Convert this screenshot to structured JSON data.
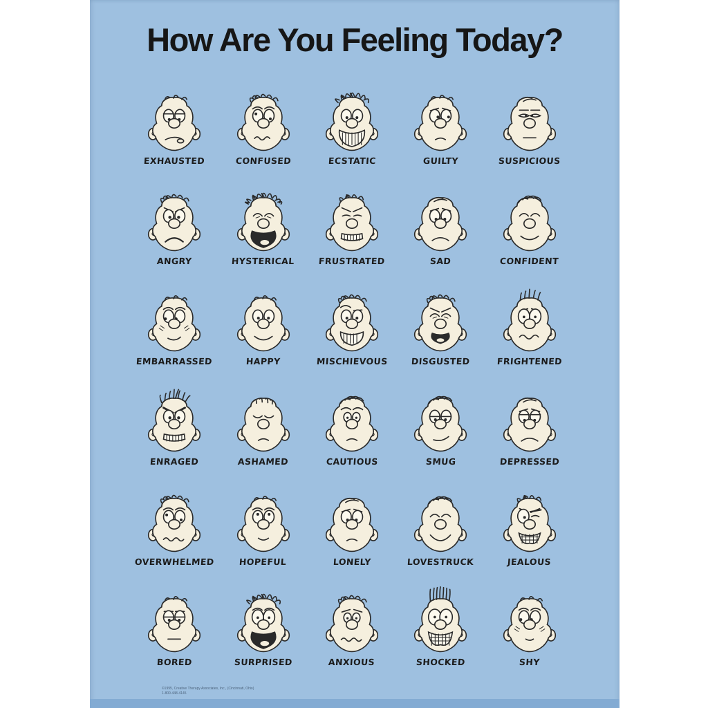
{
  "poster": {
    "title": "How Are You Feeling Today?",
    "fine_print_line1": "©1995, Creative Therapy Associates, Inc., (Cincinnati, Ohio)",
    "fine_print_line2": "1-800-448-4145"
  },
  "colors": {
    "page_bg": "#ffffff",
    "poster_bg": "#9ec0e0",
    "poster_edge": "#83abd3",
    "face_fill": "#f5efde",
    "eye_white": "#fcf9ee",
    "ink": "#2a2a2a",
    "title_color": "#161616"
  },
  "grid": {
    "rows": 6,
    "cols": 5
  },
  "faces": [
    {
      "label": "EXHAUSTED",
      "hair": "wisps",
      "brows": "none",
      "eyes": "droopy",
      "mouth": "tongue-frown",
      "extra": "none"
    },
    {
      "label": "CONFUSED",
      "hair": "messy",
      "brows": "raised",
      "eyes": "dizzy",
      "mouth": "squiggle",
      "extra": "none"
    },
    {
      "label": "ECSTATIC",
      "hair": "wild",
      "brows": "none",
      "eyes": "round",
      "mouth": "big-grin-teeth",
      "extra": "none"
    },
    {
      "label": "GUILTY",
      "hair": "wisps",
      "brows": "worried",
      "eyes": "shifty",
      "mouth": "small-frown",
      "extra": "none"
    },
    {
      "label": "SUSPICIOUS",
      "hair": "flat",
      "brows": "flat-low",
      "eyes": "narrow",
      "mouth": "flat",
      "extra": "none"
    },
    {
      "label": "ANGRY",
      "hair": "messy",
      "brows": "angry",
      "eyes": "mad",
      "mouth": "deep-frown",
      "extra": "none"
    },
    {
      "label": "HYSTERICAL",
      "hair": "wild-long",
      "brows": "none",
      "eyes": "squeezed",
      "mouth": "black-open-big",
      "extra": "none"
    },
    {
      "label": "FRUSTRATED",
      "hair": "ruffled",
      "brows": "angry",
      "eyes": "squint",
      "mouth": "gritted",
      "extra": "none"
    },
    {
      "label": "SAD",
      "hair": "flat",
      "brows": "sad",
      "eyes": "sad",
      "mouth": "frown",
      "extra": "none"
    },
    {
      "label": "CONFIDENT",
      "hair": "neat",
      "brows": "none",
      "eyes": "closed-content",
      "mouth": "smile",
      "extra": "none"
    },
    {
      "label": "EMBARRASSED",
      "hair": "wisps",
      "brows": "raised",
      "eyes": "side-down",
      "mouth": "sheepish-smile",
      "extra": "blush"
    },
    {
      "label": "HAPPY",
      "hair": "wisps",
      "brows": "none",
      "eyes": "round",
      "mouth": "smile",
      "extra": "none"
    },
    {
      "label": "MISCHIEVOUS",
      "hair": "messy",
      "brows": "sly",
      "eyes": "round",
      "mouth": "grin-teeth",
      "extra": "none"
    },
    {
      "label": "DISGUSTED",
      "hair": "messy",
      "brows": "angry",
      "eyes": "squeezed",
      "mouth": "black-open",
      "extra": "none"
    },
    {
      "label": "FRIGHTENED",
      "hair": "spiky",
      "brows": "worried",
      "eyes": "wide",
      "mouth": "wavy-grimace",
      "extra": "none"
    },
    {
      "label": "ENRAGED",
      "hair": "spiky-wild",
      "brows": "angry-heavy",
      "eyes": "mad",
      "mouth": "gritted",
      "extra": "none"
    },
    {
      "label": "ASHAMED",
      "hair": "combed-down",
      "brows": "none",
      "eyes": "closed-down",
      "mouth": "small-frown",
      "extra": "none"
    },
    {
      "label": "CAUTIOUS",
      "hair": "neat",
      "brows": "raised",
      "eyes": "small-worried",
      "mouth": "small-frown",
      "extra": "none"
    },
    {
      "label": "SMUG",
      "hair": "neat",
      "brows": "none",
      "eyes": "half-lid",
      "mouth": "smirk",
      "extra": "none"
    },
    {
      "label": "DEPRESSED",
      "hair": "flat",
      "brows": "sad",
      "eyes": "droopy",
      "mouth": "frown",
      "extra": "none"
    },
    {
      "label": "OVERWHELMED",
      "hair": "messy",
      "brows": "raised",
      "eyes": "dizzy",
      "mouth": "squiggle-long",
      "extra": "none"
    },
    {
      "label": "HOPEFUL",
      "hair": "wisps",
      "brows": "raised",
      "eyes": "up-look",
      "mouth": "small-smile",
      "extra": "none"
    },
    {
      "label": "LONELY",
      "hair": "flat",
      "brows": "sad",
      "eyes": "sad",
      "mouth": "small-frown",
      "extra": "none"
    },
    {
      "label": "LOVESTRUCK",
      "hair": "neat",
      "brows": "none",
      "eyes": "closed-content",
      "mouth": "big-smile",
      "extra": "none"
    },
    {
      "label": "JEALOUS",
      "hair": "ruffled",
      "brows": "angry",
      "eyes": "uneven",
      "mouth": "gritted-hatch",
      "extra": "none"
    },
    {
      "label": "BORED",
      "hair": "wisps",
      "brows": "flat-low",
      "eyes": "half-lid",
      "mouth": "flat",
      "extra": "none"
    },
    {
      "label": "SURPRISED",
      "hair": "wild",
      "brows": "raised",
      "eyes": "wide",
      "mouth": "black-open-big",
      "extra": "none"
    },
    {
      "label": "ANXIOUS",
      "hair": "messy",
      "brows": "worried",
      "eyes": "small-worried",
      "mouth": "squiggle-long",
      "extra": "none"
    },
    {
      "label": "SHOCKED",
      "hair": "straight-up",
      "brows": "none",
      "eyes": "huge",
      "mouth": "gritted-hatch-big",
      "extra": "none"
    },
    {
      "label": "SHY",
      "hair": "wisps",
      "brows": "raised",
      "eyes": "side-down",
      "mouth": "tiny-smile",
      "extra": "blush"
    }
  ]
}
